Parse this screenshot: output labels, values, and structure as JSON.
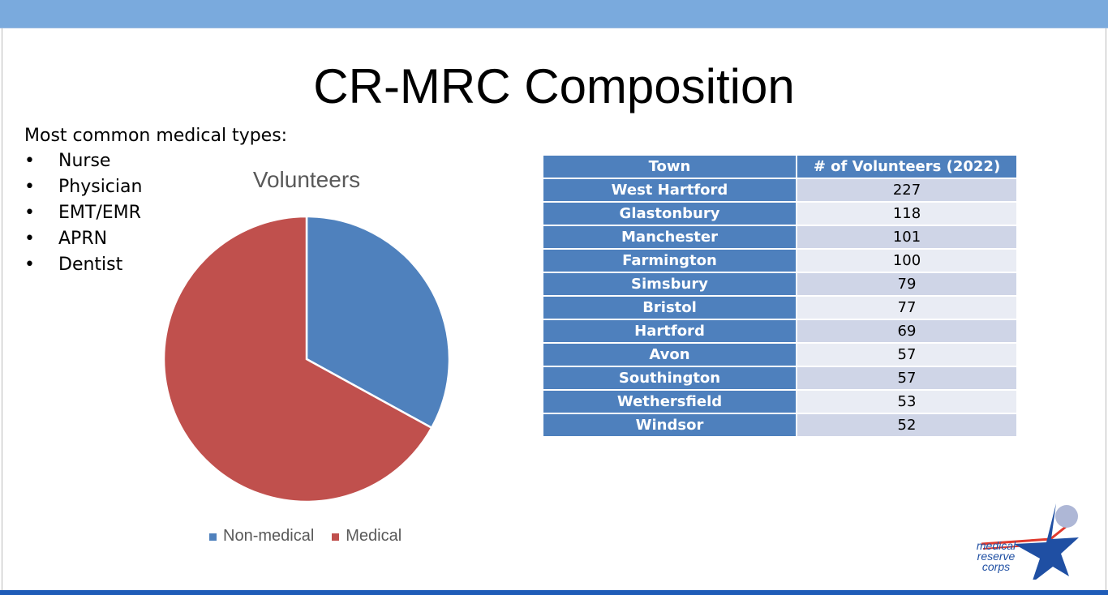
{
  "title": "CR-MRC Composition",
  "intro": "Most common medical types:",
  "medical_types": [
    "Nurse",
    "Physician",
    "EMT/EMR",
    "APRN",
    "Dentist"
  ],
  "bullet": "•",
  "chart_data": {
    "type": "pie",
    "title": "Volunteers",
    "categories": [
      "Non-medical",
      "Medical"
    ],
    "values": [
      33,
      67
    ],
    "colors": [
      "#4f81bd",
      "#c0504d"
    ],
    "legend": "bottom"
  },
  "table": {
    "headers": [
      "Town",
      "# of Volunteers (2022)"
    ],
    "rows": [
      [
        "West Hartford",
        "227"
      ],
      [
        "Glastonbury",
        "118"
      ],
      [
        "Manchester",
        "101"
      ],
      [
        "Farmington",
        "100"
      ],
      [
        "Simsbury",
        "79"
      ],
      [
        "Bristol",
        "77"
      ],
      [
        "Hartford",
        "69"
      ],
      [
        "Avon",
        "57"
      ],
      [
        "Southington",
        "57"
      ],
      [
        "Wethersfield",
        "53"
      ],
      [
        "Windsor",
        "52"
      ]
    ]
  },
  "logo": {
    "text": [
      "medical",
      "reserve",
      "corps"
    ]
  }
}
